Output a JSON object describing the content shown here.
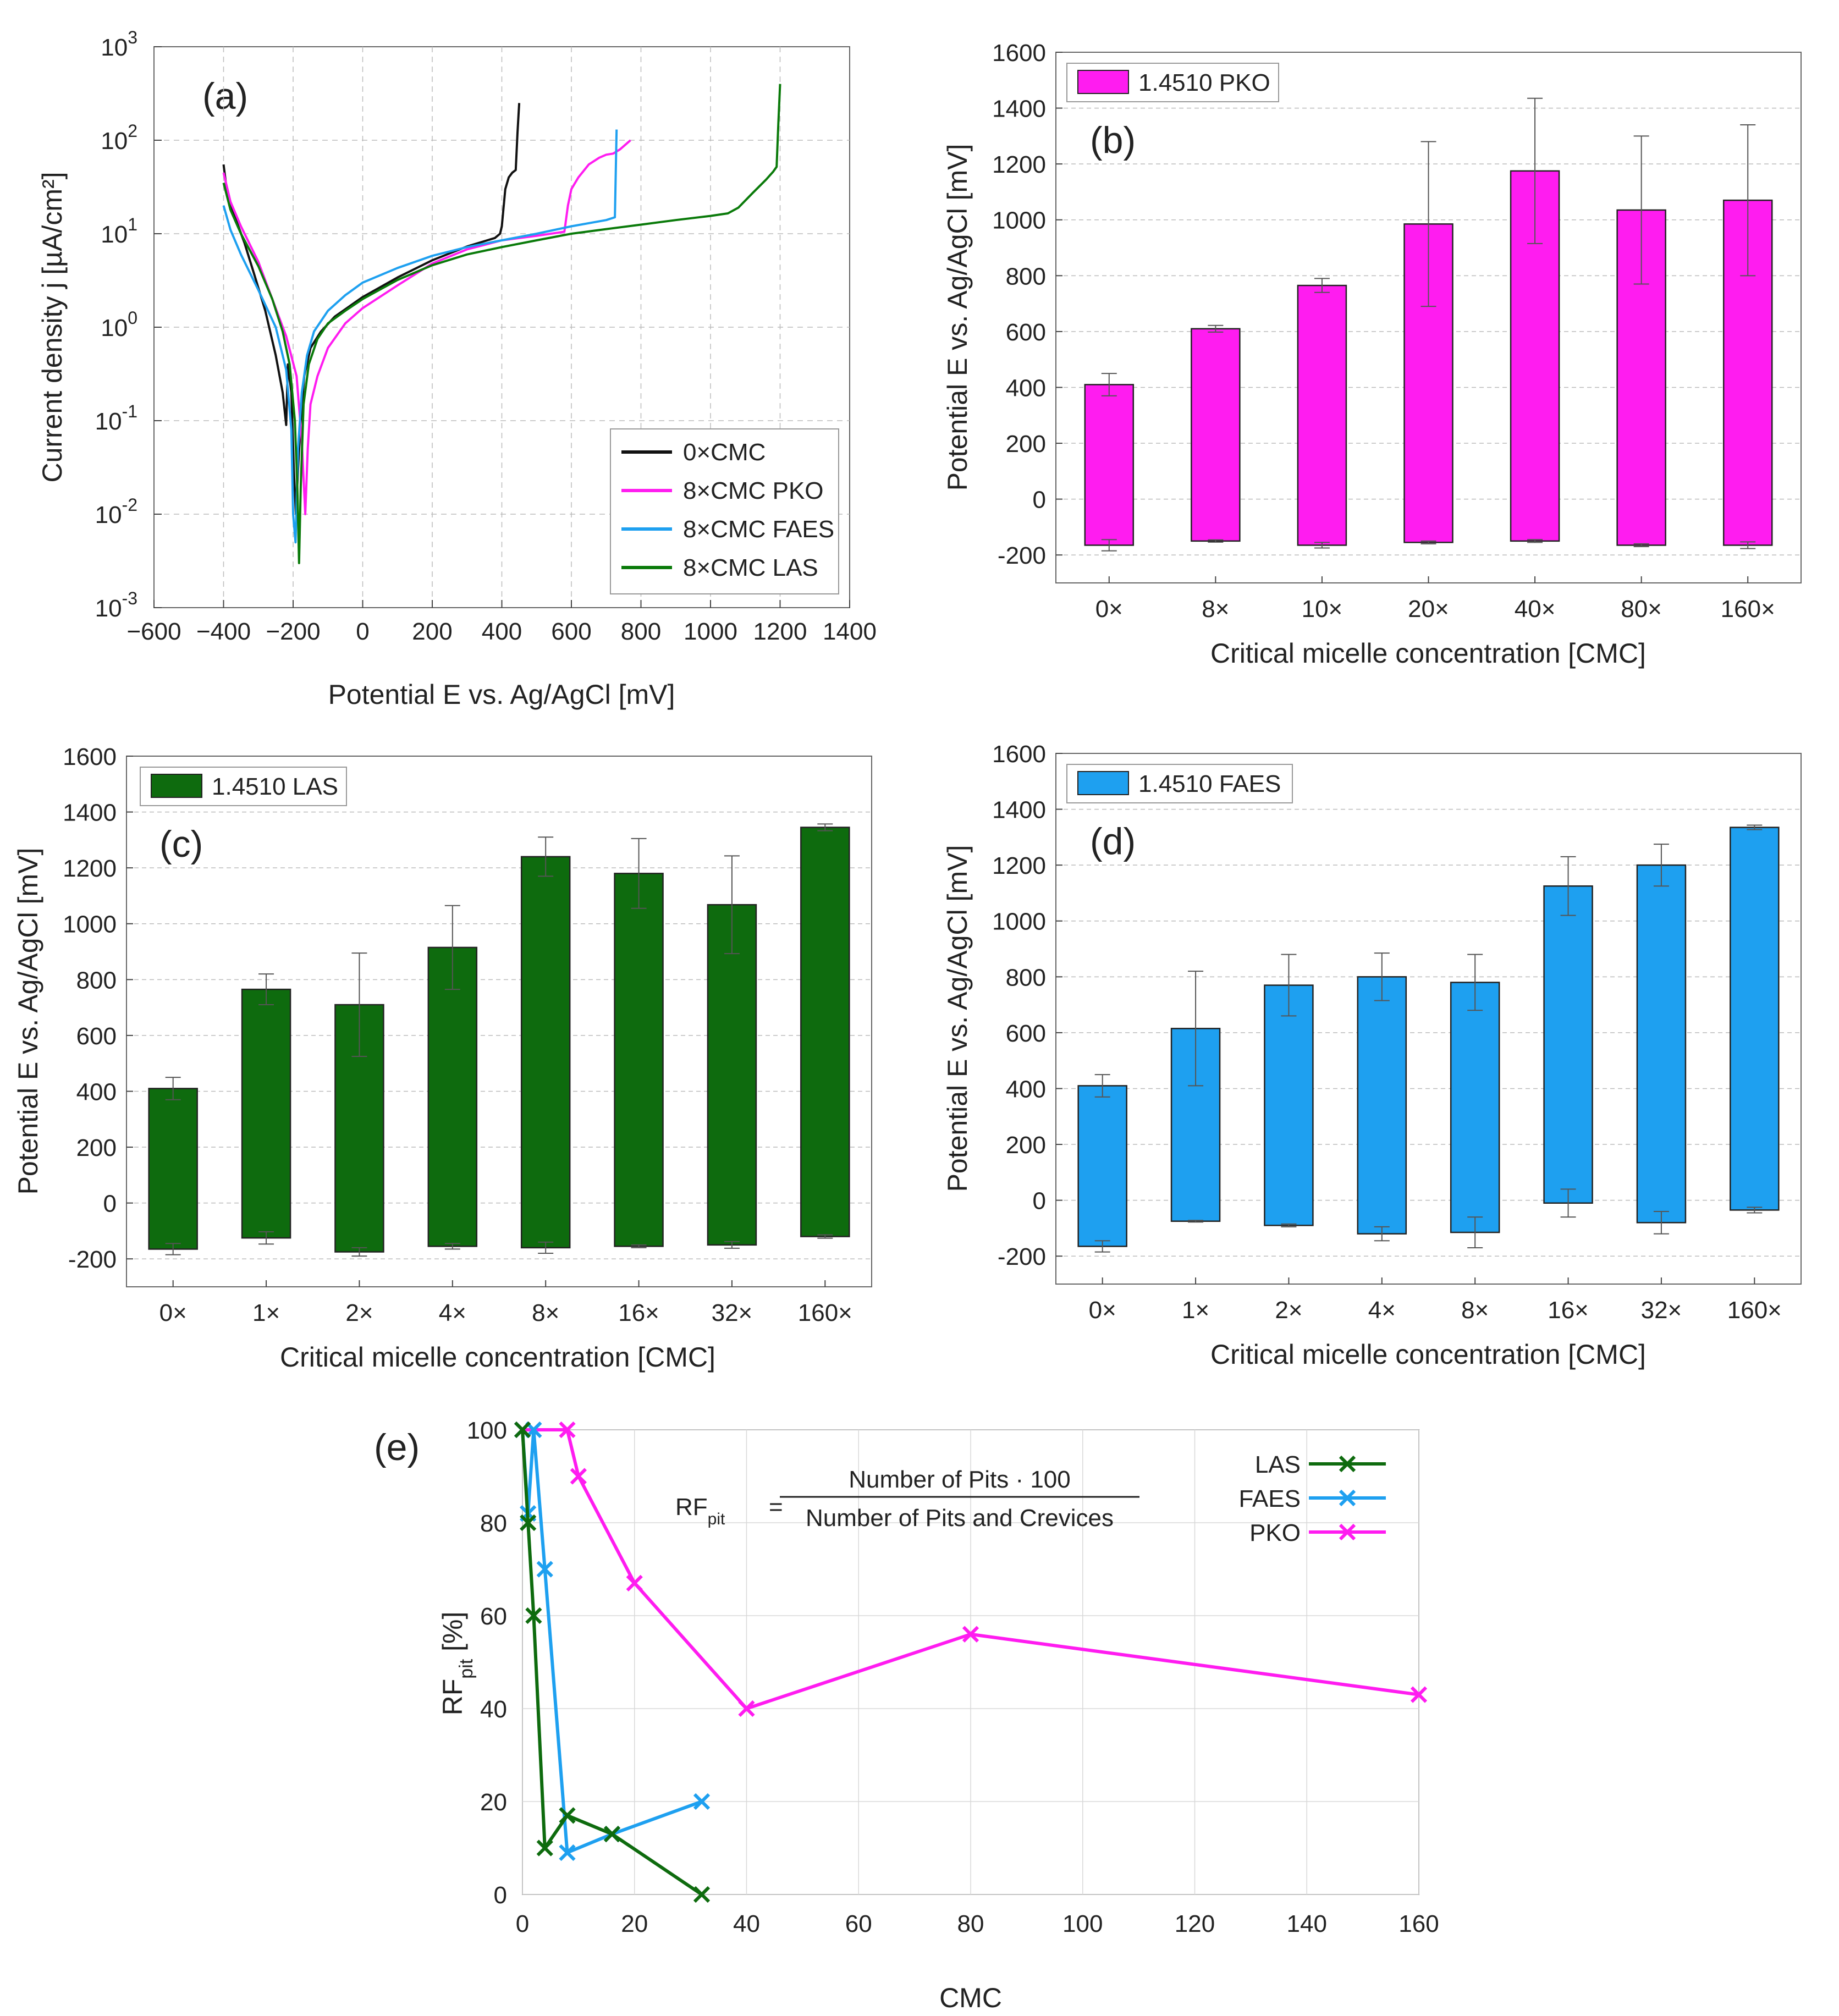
{
  "figure": {
    "panel_labels": {
      "a": "(a)",
      "b": "(b)",
      "c": "(c)",
      "d": "(d)",
      "e": "(e)"
    }
  },
  "colors": {
    "black": "#111111",
    "magenta": "#ff1cf0",
    "blue": "#1ea0f0",
    "green": "#0a7a0a",
    "dark_green": "#0e6b0e",
    "grid": "#bbbbbb"
  },
  "chart_data": [
    {
      "id": "a",
      "type": "line",
      "label": "(a)",
      "xlabel": "Potential E vs. Ag/AgCl [mV]",
      "ylabel": "Current density j [µA/cm²]",
      "xlim": [
        -600,
        1400
      ],
      "xticks": [
        "−600",
        "−400",
        "−200",
        "0",
        "200",
        "400",
        "600",
        "800",
        "1000",
        "1200",
        "1400"
      ],
      "ylim_log10": [
        -3,
        3
      ],
      "yticks": [
        {
          "base": "10",
          "exp": "-3"
        },
        {
          "base": "10",
          "exp": "-2"
        },
        {
          "base": "10",
          "exp": "-1"
        },
        {
          "base": "10",
          "exp": "0"
        },
        {
          "base": "10",
          "exp": "1"
        },
        {
          "base": "10",
          "exp": "2"
        },
        {
          "base": "10",
          "exp": "3"
        }
      ],
      "legend_position": "bottom-right",
      "series": [
        {
          "name": "0×CMC",
          "color_key": "black",
          "points": [
            [
              -400,
              55
            ],
            [
              -390,
              28
            ],
            [
              -370,
              16
            ],
            [
              -340,
              8
            ],
            [
              -310,
              3.5
            ],
            [
              -280,
              1.5
            ],
            [
              -250,
              0.5
            ],
            [
              -230,
              0.2
            ],
            [
              -220,
              0.09
            ],
            [
              -215,
              0.4
            ],
            [
              -205,
              0.2
            ],
            [
              -198,
              0.03
            ],
            [
              -192,
              0.01
            ],
            [
              -186,
              0.03
            ],
            [
              -178,
              0.1
            ],
            [
              -168,
              0.3
            ],
            [
              -150,
              0.6
            ],
            [
              -120,
              0.9
            ],
            [
              -80,
              1.3
            ],
            [
              0,
              2.1
            ],
            [
              100,
              3.4
            ],
            [
              200,
              5.2
            ],
            [
              300,
              7.3
            ],
            [
              380,
              9
            ],
            [
              395,
              10
            ],
            [
              400,
              12
            ],
            [
              410,
              30
            ],
            [
              420,
              40
            ],
            [
              430,
              45
            ],
            [
              440,
              48
            ],
            [
              445,
              120
            ],
            [
              450,
              250
            ]
          ]
        },
        {
          "name": "8×CMC PKO",
          "color_key": "magenta",
          "points": [
            [
              -400,
              45
            ],
            [
              -380,
              22
            ],
            [
              -350,
              12
            ],
            [
              -300,
              5
            ],
            [
              -260,
              2
            ],
            [
              -220,
              0.8
            ],
            [
              -190,
              0.3
            ],
            [
              -175,
              0.06
            ],
            [
              -165,
              0.01
            ],
            [
              -158,
              0.05
            ],
            [
              -150,
              0.15
            ],
            [
              -130,
              0.3
            ],
            [
              -100,
              0.6
            ],
            [
              -50,
              1.1
            ],
            [
              0,
              1.6
            ],
            [
              100,
              2.8
            ],
            [
              200,
              4.8
            ],
            [
              300,
              6.8
            ],
            [
              400,
              8.5
            ],
            [
              500,
              9.5
            ],
            [
              580,
              10.5
            ],
            [
              590,
              20
            ],
            [
              600,
              30
            ],
            [
              620,
              40
            ],
            [
              650,
              55
            ],
            [
              680,
              65
            ],
            [
              700,
              70
            ],
            [
              720,
              72
            ],
            [
              740,
              80
            ],
            [
              770,
              100
            ]
          ]
        },
        {
          "name": "8×CMC FAES",
          "color_key": "blue",
          "points": [
            [
              -400,
              20
            ],
            [
              -380,
              11
            ],
            [
              -350,
              6
            ],
            [
              -300,
              2.5
            ],
            [
              -250,
              1
            ],
            [
              -220,
              0.35
            ],
            [
              -205,
              0.08
            ],
            [
              -200,
              0.01
            ],
            [
              -193,
              0.005
            ],
            [
              -186,
              0.05
            ],
            [
              -175,
              0.2
            ],
            [
              -160,
              0.5
            ],
            [
              -140,
              0.9
            ],
            [
              -100,
              1.5
            ],
            [
              -50,
              2.2
            ],
            [
              0,
              3
            ],
            [
              100,
              4.3
            ],
            [
              200,
              5.8
            ],
            [
              300,
              7.2
            ],
            [
              400,
              8.5
            ],
            [
              500,
              10
            ],
            [
              600,
              12
            ],
            [
              700,
              14
            ],
            [
              725,
              15
            ],
            [
              730,
              130
            ]
          ]
        },
        {
          "name": "8×CMC LAS",
          "color_key": "green",
          "points": [
            [
              -400,
              35
            ],
            [
              -380,
              18
            ],
            [
              -350,
              10
            ],
            [
              -300,
              4.5
            ],
            [
              -260,
              2
            ],
            [
              -230,
              0.9
            ],
            [
              -210,
              0.4
            ],
            [
              -195,
              0.1
            ],
            [
              -188,
              0.02
            ],
            [
              -183,
              0.003
            ],
            [
              -178,
              0.02
            ],
            [
              -170,
              0.15
            ],
            [
              -155,
              0.4
            ],
            [
              -130,
              0.75
            ],
            [
              -100,
              1.1
            ],
            [
              -50,
              1.5
            ],
            [
              0,
              2
            ],
            [
              100,
              3.2
            ],
            [
              200,
              4.6
            ],
            [
              300,
              6
            ],
            [
              400,
              7.2
            ],
            [
              500,
              8.5
            ],
            [
              600,
              10
            ],
            [
              700,
              11.2
            ],
            [
              800,
              12.5
            ],
            [
              900,
              14
            ],
            [
              1000,
              15.5
            ],
            [
              1050,
              16.5
            ],
            [
              1080,
              19
            ],
            [
              1120,
              27
            ],
            [
              1160,
              38
            ],
            [
              1180,
              46
            ],
            [
              1190,
              52
            ],
            [
              1195,
              150
            ],
            [
              1200,
              400
            ]
          ]
        }
      ]
    },
    {
      "id": "b",
      "type": "bar",
      "label": "(b)",
      "legend": "1.4510 PKO",
      "color_key": "magenta",
      "xlabel": "Critical micelle concentration [CMC]",
      "ylabel": "Potential E vs. Ag/AgCl [mV]",
      "ylim": [
        -300,
        1600
      ],
      "yticks": [
        "-200",
        "0",
        "200",
        "400",
        "600",
        "800",
        "1000",
        "1200",
        "1400",
        "1600"
      ],
      "categories": [
        "0×",
        "8×",
        "10×",
        "20×",
        "40×",
        "80×",
        "160×"
      ],
      "upper": [
        410,
        610,
        765,
        985,
        1175,
        1035,
        1070
      ],
      "upper_err": [
        40,
        12,
        25,
        295,
        260,
        265,
        270
      ],
      "lower": [
        -165,
        -150,
        -165,
        -155,
        -150,
        -165,
        -165
      ],
      "lower_err": [
        20,
        4,
        10,
        5,
        5,
        5,
        12
      ]
    },
    {
      "id": "c",
      "type": "bar",
      "label": "(c)",
      "legend": "1.4510 LAS",
      "color_key": "dark_green",
      "xlabel": "Critical micelle concentration [CMC]",
      "ylabel": "Potential E vs. Ag/AgCl [mV]",
      "ylim": [
        -300,
        1600
      ],
      "yticks": [
        "-200",
        "0",
        "200",
        "400",
        "600",
        "800",
        "1000",
        "1200",
        "1400",
        "1600"
      ],
      "categories": [
        "0×",
        "1×",
        "2×",
        "4×",
        "8×",
        "16×",
        "32×",
        "160×"
      ],
      "upper": [
        410,
        765,
        710,
        915,
        1240,
        1180,
        1068,
        1345
      ],
      "upper_err": [
        40,
        55,
        185,
        150,
        70,
        125,
        175,
        12
      ],
      "lower": [
        -165,
        -125,
        -175,
        -155,
        -160,
        -155,
        -150,
        -120
      ],
      "lower_err": [
        20,
        22,
        15,
        10,
        20,
        5,
        12,
        6
      ]
    },
    {
      "id": "d",
      "type": "bar",
      "label": "(d)",
      "legend": "1.4510 FAES",
      "color_key": "blue",
      "xlabel": "Critical micelle concentration [CMC]",
      "ylabel": "Potential E vs. Ag/AgCl [mV]",
      "ylim": [
        -300,
        1600
      ],
      "yticks": [
        "-200",
        "0",
        "200",
        "400",
        "600",
        "800",
        "1000",
        "1200",
        "1400",
        "1600"
      ],
      "categories": [
        "0×",
        "1×",
        "2×",
        "4×",
        "8×",
        "16×",
        "32×",
        "160×"
      ],
      "upper": [
        410,
        615,
        770,
        800,
        780,
        1125,
        1200,
        1335
      ],
      "upper_err": [
        40,
        205,
        110,
        85,
        100,
        105,
        75,
        8
      ],
      "lower": [
        -165,
        -75,
        -90,
        -120,
        -115,
        -10,
        -80,
        -35
      ],
      "lower_err": [
        20,
        3,
        5,
        25,
        55,
        50,
        40,
        10
      ]
    },
    {
      "id": "e",
      "type": "line",
      "label": "(e)",
      "xlabel": "CMC",
      "ylabel_main": "RF",
      "ylabel_sub": "pit",
      "ylabel_unit": " [%]",
      "xlim": [
        0,
        160
      ],
      "ylim": [
        0,
        100
      ],
      "xticks": [
        "0",
        "20",
        "40",
        "60",
        "80",
        "100",
        "120",
        "140",
        "160"
      ],
      "yticks": [
        "0",
        "20",
        "40",
        "60",
        "80",
        "100"
      ],
      "formula": {
        "lhs_main": "RF",
        "lhs_sub": "pit",
        "equals": "=",
        "numerator": "Number of Pits · 100",
        "denominator": "Number of Pits and Crevices"
      },
      "legend_position": "top-right",
      "series": [
        {
          "name": "LAS",
          "color_key": "dark_green",
          "points": [
            [
              0,
              100
            ],
            [
              1,
              80
            ],
            [
              2,
              60
            ],
            [
              4,
              10
            ],
            [
              8,
              17
            ],
            [
              16,
              13
            ],
            [
              32,
              0
            ]
          ]
        },
        {
          "name": "FAES",
          "color_key": "blue",
          "points": [
            [
              0,
              100
            ],
            [
              1,
              82
            ],
            [
              2,
              100
            ],
            [
              4,
              70
            ],
            [
              8,
              9
            ],
            [
              16,
              13
            ],
            [
              32,
              20
            ]
          ]
        },
        {
          "name": "PKO",
          "color_key": "magenta",
          "points": [
            [
              0,
              100
            ],
            [
              8,
              100
            ],
            [
              10,
              90
            ],
            [
              20,
              67
            ],
            [
              40,
              40
            ],
            [
              80,
              56
            ],
            [
              160,
              43
            ]
          ]
        }
      ]
    }
  ]
}
